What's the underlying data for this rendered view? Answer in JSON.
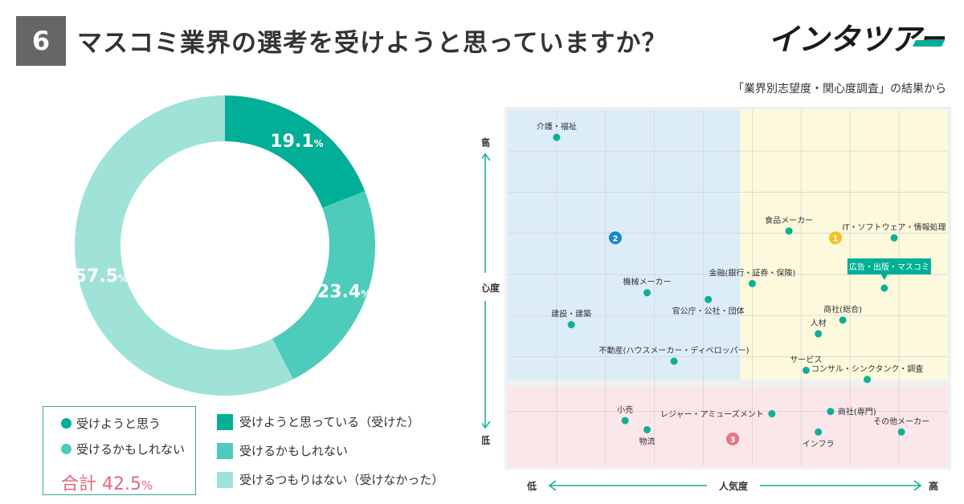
{
  "header": {
    "question_number": "6",
    "title": "マスコミ業界の選考を受けようと思っていますか？",
    "logo_text": "インタツアー"
  },
  "source_note": "「業界別志望度・関心度調査」の結果から",
  "colors": {
    "dark_teal": "#00af96",
    "mid_teal": "#4dcbbb",
    "light_teal": "#9fe2d8",
    "point": "#10ae97",
    "badge_blue": "#1a86d0",
    "badge_yellow": "#f4c222",
    "badge_pink": "#e8738a",
    "total_pink": "#e06a7f"
  },
  "summary_box": {
    "item1": "受けようと思う",
    "item2": "受けるかもしれない",
    "total_label": "合計",
    "total_value": "42.5",
    "total_unit": "%"
  },
  "legend": [
    "受けようと思っている（受けた）",
    "受けるかもしれない",
    "受けるつもりはない（受けなかった）"
  ],
  "chart_data": [
    {
      "type": "pie",
      "style": "donut",
      "categories": [
        "受けようと思っている（受けた）",
        "受けるかもしれない",
        "受けるつもりはない（受けなかった）"
      ],
      "values": [
        19.1,
        23.4,
        57.5
      ],
      "labels": [
        "19.1",
        "23.4",
        "57.5"
      ],
      "unit": "%"
    },
    {
      "type": "scatter",
      "xlabel": "人気度",
      "ylabel": "関心度",
      "x_low_label": "低",
      "x_high_label": "高",
      "y_low_label": "低",
      "y_high_label": "高",
      "xlim": [
        0,
        9
      ],
      "ylim": [
        0,
        7.8
      ],
      "grid": true,
      "regions": [
        {
          "id": "2",
          "color": "blue",
          "x": [
            0,
            4.75
          ],
          "y": [
            1.9,
            7.8
          ]
        },
        {
          "id": "1",
          "color": "yellow",
          "x": [
            4.75,
            9
          ],
          "y": [
            1.9,
            7.8
          ]
        },
        {
          "id": "3",
          "color": "pink",
          "x": [
            0,
            9
          ],
          "y": [
            0,
            1.75
          ]
        }
      ],
      "badges": [
        {
          "id": "1",
          "x": 6.7,
          "y": 5.0
        },
        {
          "id": "2",
          "x": 2.2,
          "y": 5.0
        },
        {
          "id": "3",
          "x": 4.6,
          "y": 0.6
        }
      ],
      "points": [
        {
          "label": "介護・福祉",
          "x": 1.0,
          "y": 7.2,
          "label_pos": "above"
        },
        {
          "label": "食品メーカー",
          "x": 5.75,
          "y": 5.15,
          "label_pos": "above"
        },
        {
          "label": "IT・ソフトウェア・情報処理",
          "x": 7.9,
          "y": 5.0,
          "label_pos": "above"
        },
        {
          "label": "金融(銀行・証券・保険)",
          "x": 5.0,
          "y": 4.0,
          "label_pos": "above"
        },
        {
          "label": "広告・出版・マスコミ",
          "x": 7.7,
          "y": 3.9,
          "label_pos": "highlight"
        },
        {
          "label": "機械メーカー",
          "x": 2.85,
          "y": 3.8,
          "label_pos": "above"
        },
        {
          "label": "官公庁・公社・団体",
          "x": 4.1,
          "y": 3.65,
          "label_pos": "below"
        },
        {
          "label": "建設・建築",
          "x": 1.3,
          "y": 3.1,
          "label_pos": "above"
        },
        {
          "label": "商社(総合)",
          "x": 6.85,
          "y": 3.2,
          "label_pos": "above"
        },
        {
          "label": "人材",
          "x": 6.35,
          "y": 2.9,
          "label_pos": "above"
        },
        {
          "label": "不動産(ハウスメーカー・ディベロッパー)",
          "x": 3.4,
          "y": 2.3,
          "label_pos": "above"
        },
        {
          "label": "サービス",
          "x": 6.1,
          "y": 2.1,
          "label_pos": "above"
        },
        {
          "label": "コンサル・シンクタンク・調査",
          "x": 7.35,
          "y": 1.9,
          "label_pos": "above"
        },
        {
          "label": "小売",
          "x": 2.4,
          "y": 1.0,
          "label_pos": "above"
        },
        {
          "label": "物流",
          "x": 2.85,
          "y": 0.8,
          "label_pos": "below"
        },
        {
          "label": "レジャー・アミューズメント",
          "x": 5.4,
          "y": 1.15,
          "label_pos": "left"
        },
        {
          "label": "商社(専門)",
          "x": 6.6,
          "y": 1.2,
          "label_pos": "right"
        },
        {
          "label": "インフラ",
          "x": 6.35,
          "y": 0.75,
          "label_pos": "below"
        },
        {
          "label": "その他メーカー",
          "x": 8.05,
          "y": 0.75,
          "label_pos": "above"
        }
      ]
    }
  ]
}
